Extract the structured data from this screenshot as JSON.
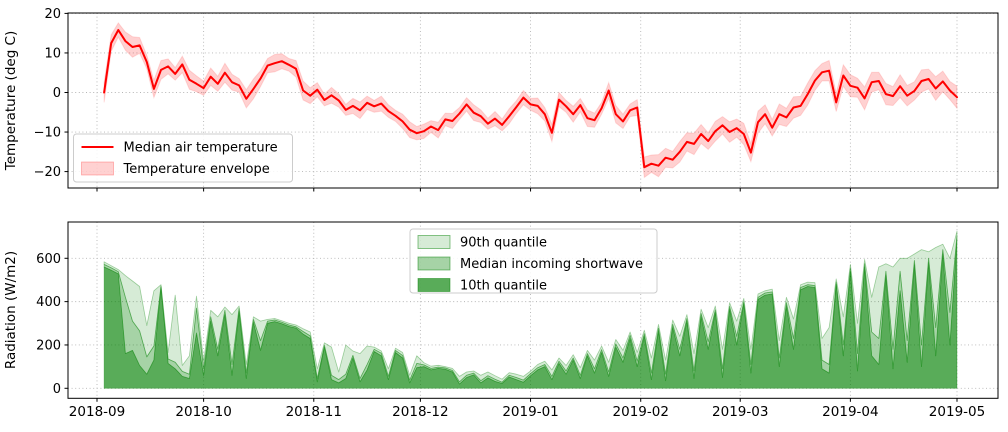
{
  "figure": {
    "background": "#ffffff",
    "grid_color": "#b5b5b5",
    "spine_color": "#000000",
    "text_color": "#000000"
  },
  "colors": {
    "temperature_line": "#ff0000",
    "temperature_envelope_base": "#ff0000",
    "temperature_envelope_alpha": 0.18,
    "radiation_green": "#008000",
    "q10_alpha": 0.65,
    "median_alpha": 0.35,
    "q90_alpha": 0.16,
    "legend_border": "#cccccc",
    "legend_bg": "#ffffff"
  },
  "chart_data": [
    {
      "type": "line",
      "ylabel": "Temperature (deg C)",
      "ylim": [
        -24.15,
        20.1
      ],
      "yticks": [
        {
          "v": 20,
          "label": "20"
        },
        {
          "v": 10,
          "label": "10"
        },
        {
          "v": 0,
          "label": "0"
        },
        {
          "v": -10,
          "label": "−10"
        },
        {
          "v": -20,
          "label": "−20"
        }
      ],
      "grid": true,
      "legend_position": "lower-left",
      "legend": [
        {
          "label": "Median air temperature",
          "swatch": "line"
        },
        {
          "label": "Temperature envelope",
          "swatch": "patch"
        }
      ],
      "x_days": {
        "start": 2,
        "step": 2,
        "count": 121
      },
      "series": [
        {
          "name": "Median air temperature",
          "values": [
            0.0,
            12.5,
            15.8,
            13.0,
            11.5,
            11.9,
            7.7,
            0.9,
            5.7,
            6.6,
            4.7,
            7.1,
            3.2,
            2.2,
            1.1,
            4.0,
            2.2,
            5.0,
            2.6,
            1.8,
            -1.6,
            0.9,
            3.5,
            6.8,
            7.4,
            7.9,
            7.0,
            6.0,
            0.5,
            -0.8,
            0.7,
            -1.9,
            -0.7,
            -2.0,
            -4.4,
            -3.4,
            -4.5,
            -2.6,
            -3.5,
            -2.8,
            -4.7,
            -5.9,
            -7.3,
            -9.4,
            -10.3,
            -9.8,
            -8.6,
            -9.5,
            -6.8,
            -7.2,
            -5.3,
            -3.0,
            -5.1,
            -6.0,
            -7.9,
            -6.6,
            -8.2,
            -6.0,
            -3.7,
            -1.3,
            -3.0,
            -3.4,
            -5.5,
            -10.2,
            -1.8,
            -3.5,
            -5.5,
            -3.2,
            -6.5,
            -7.0,
            -4.0,
            0.5,
            -5.5,
            -7.3,
            -4.5,
            -3.8,
            -18.9,
            -18.0,
            -18.5,
            -16.5,
            -17.0,
            -15.0,
            -12.5,
            -13.0,
            -10.5,
            -12.3,
            -9.8,
            -8.3,
            -10.0,
            -9.0,
            -10.5,
            -15.2,
            -7.5,
            -5.5,
            -8.9,
            -5.5,
            -6.3,
            -3.8,
            -3.4,
            -0.4,
            3.0,
            5.1,
            5.5,
            -2.5,
            4.3,
            1.7,
            1.2,
            -1.5,
            2.6,
            2.9,
            -0.4,
            -0.9,
            1.6,
            -0.8,
            0.4,
            2.9,
            3.4,
            1.0,
            2.8,
            0.5,
            -1.2
          ]
        },
        {
          "name": "Temperature envelope half-width",
          "values": [
            2.5,
            2.1,
            1.8,
            2.3,
            2.6,
            2.0,
            1.7,
            2.2,
            2.4,
            1.9,
            1.6,
            2.1,
            2.4,
            2.0,
            1.8,
            2.2,
            1.9,
            2.4,
            2.0,
            1.7,
            2.3,
            2.5,
            2.0,
            1.8,
            2.2,
            1.9,
            1.6,
            2.1,
            2.4,
            2.0,
            1.8,
            1.5,
            2.0,
            1.7,
            1.4,
            1.9,
            2.1,
            1.7,
            1.5,
            1.9,
            1.6,
            1.4,
            1.8,
            2.0,
            1.7,
            1.8,
            1.5,
            2.0,
            1.6,
            1.9,
            1.5,
            1.7,
            2.0,
            1.6,
            1.4,
            1.8,
            1.5,
            1.9,
            1.6,
            1.8,
            1.5,
            2.0,
            1.7,
            2.2,
            1.8,
            1.5,
            2.0,
            1.7,
            2.1,
            1.8,
            1.5,
            2.0,
            2.2,
            1.8,
            1.6,
            2.0,
            2.6,
            2.2,
            2.8,
            2.4,
            2.1,
            2.6,
            2.3,
            2.7,
            2.4,
            2.1,
            2.5,
            2.2,
            2.6,
            2.3,
            2.7,
            2.3,
            2.8,
            2.4,
            2.1,
            2.6,
            2.3,
            2.7,
            2.4,
            2.8,
            2.5,
            2.2,
            2.6,
            2.3,
            2.7,
            2.8,
            2.4,
            2.9,
            2.5,
            2.2,
            2.7,
            2.4,
            2.9,
            2.6,
            2.3,
            2.8,
            2.5,
            3.0,
            2.6,
            2.3,
            2.8
          ]
        }
      ]
    },
    {
      "type": "area",
      "ylabel": "Radiation (W/m2)",
      "ylim": [
        -46.2,
        767.5
      ],
      "yticks": [
        {
          "v": 0,
          "label": "0"
        },
        {
          "v": 200,
          "label": "200"
        },
        {
          "v": 400,
          "label": "400"
        },
        {
          "v": 600,
          "label": "600"
        }
      ],
      "grid": true,
      "legend_position": "upper-center",
      "legend": [
        {
          "label": "90th quantile",
          "swatch": "q90"
        },
        {
          "label": "Median incoming shortwave",
          "swatch": "median"
        },
        {
          "label": "10th quantile",
          "swatch": "q10"
        }
      ],
      "x_days": {
        "start": 2,
        "step": 2,
        "count": 121
      },
      "series": [
        {
          "name": "10th quantile",
          "values": [
            560,
            545,
            528,
            160,
            175,
            105,
            65,
            130,
            468,
            115,
            90,
            55,
            45,
            255,
            60,
            310,
            150,
            340,
            60,
            355,
            45,
            305,
            175,
            300,
            308,
            298,
            285,
            278,
            250,
            230,
            30,
            190,
            40,
            25,
            45,
            140,
            30,
            85,
            170,
            150,
            40,
            165,
            140,
            25,
            95,
            100,
            85,
            92,
            88,
            75,
            20,
            50,
            62,
            25,
            48,
            32,
            22,
            52,
            40,
            28,
            58,
            85,
            100,
            40,
            115,
            65,
            130,
            45,
            150,
            70,
            165,
            55,
            190,
            120,
            230,
            100,
            240,
            40,
            265,
            35,
            280,
            150,
            310,
            45,
            330,
            180,
            350,
            50,
            365,
            200,
            390,
            70,
            410,
            430,
            435,
            100,
            380,
            180,
            455,
            470,
            465,
            90,
            70,
            480,
            150,
            540,
            80,
            560,
            150,
            110,
            520,
            90,
            450,
            120,
            570,
            100,
            580,
            150,
            620,
            200,
            690
          ]
        },
        {
          "name": "Median incoming shortwave",
          "values": [
            572,
            556,
            538,
            420,
            310,
            265,
            145,
            195,
            472,
            135,
            120,
            78,
            65,
            370,
            90,
            330,
            180,
            360,
            110,
            370,
            70,
            318,
            220,
            310,
            315,
            305,
            292,
            284,
            262,
            242,
            45,
            198,
            60,
            40,
            65,
            152,
            45,
            110,
            180,
            162,
            55,
            175,
            152,
            38,
            115,
            108,
            92,
            98,
            94,
            82,
            30,
            60,
            70,
            35,
            58,
            42,
            28,
            60,
            50,
            38,
            68,
            95,
            110,
            55,
            125,
            80,
            140,
            60,
            160,
            90,
            178,
            75,
            205,
            140,
            245,
            125,
            252,
            70,
            278,
            65,
            295,
            180,
            322,
            80,
            345,
            215,
            362,
            90,
            378,
            240,
            400,
            110,
            420,
            440,
            445,
            140,
            395,
            230,
            465,
            478,
            474,
            130,
            110,
            490,
            200,
            555,
            160,
            575,
            260,
            230,
            540,
            180,
            540,
            220,
            590,
            200,
            600,
            280,
            640,
            350,
            705
          ]
        },
        {
          "name": "90th quantile",
          "values": [
            584,
            566,
            548,
            520,
            495,
            470,
            290,
            450,
            478,
            165,
            430,
            105,
            150,
            425,
            125,
            360,
            330,
            375,
            340,
            380,
            110,
            330,
            310,
            318,
            322,
            312,
            300,
            292,
            275,
            260,
            90,
            210,
            190,
            75,
            200,
            172,
            160,
            195,
            190,
            172,
            90,
            185,
            165,
            60,
            150,
            118,
            102,
            106,
            100,
            92,
            55,
            75,
            80,
            60,
            75,
            58,
            42,
            72,
            65,
            55,
            80,
            110,
            125,
            85,
            140,
            105,
            155,
            95,
            175,
            130,
            195,
            120,
            225,
            175,
            260,
            165,
            268,
            140,
            295,
            130,
            315,
            240,
            340,
            160,
            365,
            280,
            380,
            180,
            395,
            310,
            415,
            180,
            435,
            450,
            458,
            220,
            420,
            320,
            478,
            490,
            488,
            230,
            280,
            505,
            330,
            572,
            300,
            595,
            420,
            560,
            575,
            560,
            600,
            600,
            620,
            640,
            630,
            650,
            665,
            600,
            725
          ]
        }
      ]
    }
  ],
  "x_axis": {
    "months": [
      {
        "label": "2018-09",
        "day": 0
      },
      {
        "label": "2018-10",
        "day": 30
      },
      {
        "label": "2018-11",
        "day": 61
      },
      {
        "label": "2018-12",
        "day": 91
      },
      {
        "label": "2019-01",
        "day": 122
      },
      {
        "label": "2019-02",
        "day": 153
      },
      {
        "label": "2019-03",
        "day": 181
      },
      {
        "label": "2019-04",
        "day": 212
      },
      {
        "label": "2019-05",
        "day": 242
      }
    ],
    "total_days": 242
  }
}
